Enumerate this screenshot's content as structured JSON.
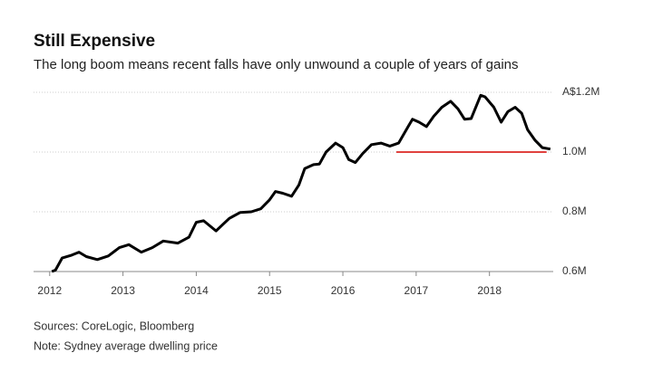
{
  "chart_data": {
    "type": "line",
    "title": "Still Expensive",
    "subtitle": "The long boom means recent falls have only unwound a couple of years of gains",
    "sources": "Sources: CoreLogic, Bloomberg",
    "note": "Note: Sydney average dwelling price",
    "x": [
      2012.03,
      2012.08,
      2012.17,
      2012.3,
      2012.4,
      2012.5,
      2012.65,
      2012.8,
      2012.95,
      2013.08,
      2013.25,
      2013.4,
      2013.55,
      2013.75,
      2013.9,
      2014.0,
      2014.1,
      2014.27,
      2014.45,
      2014.6,
      2014.75,
      2014.88,
      2015.0,
      2015.08,
      2015.18,
      2015.3,
      2015.4,
      2015.48,
      2015.6,
      2015.68,
      2015.77,
      2015.9,
      2016.0,
      2016.08,
      2016.17,
      2016.27,
      2016.39,
      2016.52,
      2016.64,
      2016.76,
      2016.89,
      2016.95,
      2017.04,
      2017.14,
      2017.24,
      2017.35,
      2017.47,
      2017.57,
      2017.66,
      2017.75,
      2017.88,
      2017.94,
      2018.06,
      2018.16,
      2018.25,
      2018.35,
      2018.44,
      2018.52,
      2018.62,
      2018.72,
      2018.83
    ],
    "series": [
      {
        "color": "#000000",
        "values": [
          600000,
          605000,
          645000,
          655000,
          665000,
          650000,
          640000,
          652000,
          680000,
          690000,
          665000,
          680000,
          702000,
          695000,
          715000,
          765000,
          770000,
          736000,
          778000,
          798000,
          800000,
          810000,
          840000,
          868000,
          862000,
          852000,
          890000,
          945000,
          958000,
          960000,
          1000000,
          1030000,
          1015000,
          975000,
          965000,
          995000,
          1025000,
          1030000,
          1020000,
          1030000,
          1085000,
          1110000,
          1100000,
          1085000,
          1120000,
          1150000,
          1170000,
          1145000,
          1110000,
          1112000,
          1190000,
          1185000,
          1150000,
          1100000,
          1135000,
          1150000,
          1130000,
          1075000,
          1040000,
          1015000,
          1010000
        ]
      }
    ],
    "reference_line": {
      "value": 1000000,
      "x": [
        2016.73,
        2018.78
      ],
      "color": "#e0413e"
    },
    "xlim": [
      2011.78,
      2018.87
    ],
    "xticks": [
      2012,
      2013,
      2014,
      2015,
      2016,
      2017,
      2018
    ],
    "ylim": [
      600000,
      1200000
    ],
    "yticks": [
      {
        "value": 600000,
        "label": "0.6M"
      },
      {
        "value": 800000,
        "label": "0.8M"
      },
      {
        "value": 1000000,
        "label": "1.0M"
      },
      {
        "value": 1200000,
        "label": "A$1.2M"
      }
    ],
    "grid": true
  }
}
